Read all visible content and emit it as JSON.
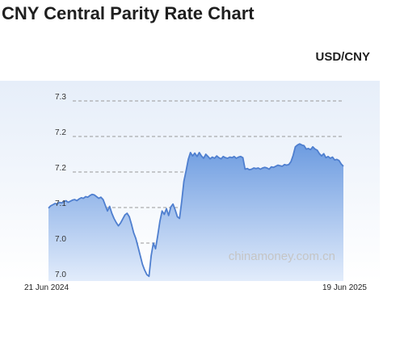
{
  "header": {
    "title": "CNY Central Parity Rate Chart",
    "pair": "USD/CNY"
  },
  "watermark": "chinamoney.com.cn",
  "colors": {
    "line": "#4f7fcf",
    "area_top": "#6c9be0",
    "area_bottom": "#e2ecfb",
    "panel_top": "#e6eef9",
    "grid": "#999999",
    "watermark": "#c5c5c5"
  },
  "chart_data": {
    "type": "area",
    "title": "CNY Central Parity Rate Chart",
    "series_name": "USD/CNY",
    "x_start_label": "21 Jun 2024",
    "x_end_label": "19 Jun 2025",
    "y_tick_labels": [
      "7.3",
      "7.2",
      "7.2",
      "7.1",
      "7.0",
      "7.0"
    ],
    "grid": true,
    "ylim": [
      7.0,
      7.31
    ],
    "values": [
      7.123,
      7.127,
      7.129,
      7.131,
      7.13,
      7.133,
      7.132,
      7.134,
      7.136,
      7.133,
      7.135,
      7.137,
      7.138,
      7.136,
      7.139,
      7.141,
      7.14,
      7.143,
      7.142,
      7.145,
      7.147,
      7.146,
      7.143,
      7.14,
      7.142,
      7.138,
      7.128,
      7.118,
      7.126,
      7.114,
      7.105,
      7.098,
      7.092,
      7.097,
      7.104,
      7.111,
      7.114,
      7.108,
      7.095,
      7.08,
      7.07,
      7.055,
      7.04,
      7.025,
      7.015,
      7.007,
      7.004,
      7.04,
      7.062,
      7.052,
      7.075,
      7.1,
      7.118,
      7.112,
      7.122,
      7.11,
      7.125,
      7.13,
      7.12,
      7.108,
      7.105,
      7.135,
      7.17,
      7.188,
      7.208,
      7.22,
      7.214,
      7.219,
      7.213,
      7.22,
      7.214,
      7.21,
      7.217,
      7.213,
      7.209,
      7.212,
      7.21,
      7.214,
      7.211,
      7.209,
      7.213,
      7.211,
      7.21,
      7.212,
      7.211,
      7.213,
      7.21,
      7.212,
      7.213,
      7.211,
      7.191,
      7.192,
      7.19,
      7.191,
      7.193,
      7.192,
      7.193,
      7.191,
      7.193,
      7.194,
      7.193,
      7.191,
      7.195,
      7.194,
      7.196,
      7.198,
      7.197,
      7.196,
      7.199,
      7.198,
      7.199,
      7.204,
      7.215,
      7.23,
      7.233,
      7.235,
      7.233,
      7.232,
      7.226,
      7.227,
      7.225,
      7.23,
      7.226,
      7.224,
      7.218,
      7.214,
      7.218,
      7.211,
      7.213,
      7.21,
      7.212,
      7.207,
      7.208,
      7.206,
      7.2,
      7.196
    ]
  }
}
